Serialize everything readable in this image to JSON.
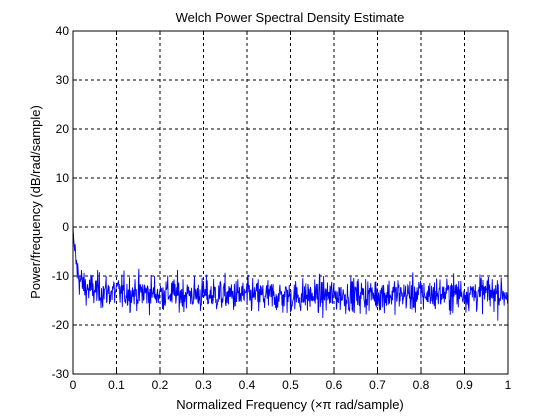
{
  "chart_data": {
    "type": "line",
    "title": "Welch Power Spectral Density Estimate",
    "xlabel": "Normalized Frequency  (×π rad/sample)",
    "ylabel": "Power/frequency  (dB/rad/sample)",
    "xlim": [
      0,
      1
    ],
    "ylim": [
      -30,
      40
    ],
    "xticks": [
      "0",
      "0.1",
      "0.2",
      "0.3",
      "0.4",
      "0.5",
      "0.6",
      "0.7",
      "0.8",
      "0.9",
      "1"
    ],
    "yticks": [
      "-30",
      "-20",
      "-10",
      "0",
      "10",
      "20",
      "30",
      "40"
    ],
    "grid": true,
    "series": [
      {
        "color": "#0000ff",
        "x": [
          0,
          0.002,
          0.005,
          0.01,
          0.015,
          0.02,
          0.03,
          0.05,
          0.1,
          0.2,
          0.3,
          0.4,
          0.5,
          0.6,
          0.7,
          0.8,
          0.9,
          1.0
        ],
        "y": [
          0,
          -3,
          -6,
          -9,
          -10.5,
          -11.5,
          -12.5,
          -13,
          -13.3,
          -13.5,
          -13.8,
          -14,
          -14.2,
          -14,
          -13.8,
          -13.8,
          -13.5,
          -13.5
        ],
        "noise_db": 2.5,
        "resolution": 1025
      }
    ]
  }
}
